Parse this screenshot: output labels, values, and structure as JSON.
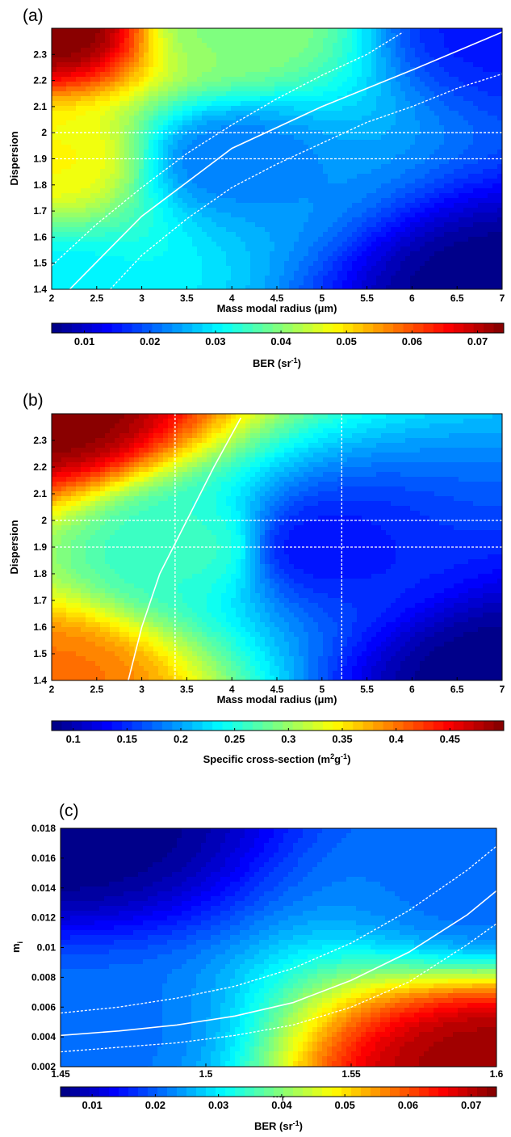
{
  "colors": {
    "colormap": [
      "#00007f",
      "#0000ff",
      "#007fff",
      "#00ffff",
      "#7fff7f",
      "#ffff00",
      "#ff7f00",
      "#ff0000",
      "#7f0000"
    ],
    "contour_line": "#ffffff",
    "axis": "#000000"
  },
  "chart_data": [
    {
      "panel_label": "(a)",
      "type": "heatmap",
      "xlabel": "Mass modal radius (μm)",
      "ylabel": "Dispersion",
      "xlim": [
        2,
        7
      ],
      "ylim": [
        1.4,
        2.4
      ],
      "x_ticks": [
        {
          "v": 2,
          "label": "2"
        },
        {
          "v": 2.5,
          "label": "2.5"
        },
        {
          "v": 3,
          "label": "3"
        },
        {
          "v": 3.5,
          "label": "3.5"
        },
        {
          "v": 4,
          "label": "4"
        },
        {
          "v": 4.5,
          "label": "4.5"
        },
        {
          "v": 5,
          "label": "5"
        },
        {
          "v": 5.5,
          "label": "5.5"
        },
        {
          "v": 6,
          "label": "6"
        },
        {
          "v": 6.5,
          "label": "6.5"
        },
        {
          "v": 7,
          "label": "7"
        }
      ],
      "y_ticks": [
        {
          "v": 1.4,
          "label": "1.4"
        },
        {
          "v": 1.5,
          "label": "1.5"
        },
        {
          "v": 1.6,
          "label": "1.6"
        },
        {
          "v": 1.7,
          "label": "1.7"
        },
        {
          "v": 1.8,
          "label": "1.8"
        },
        {
          "v": 1.9,
          "label": "1.9"
        },
        {
          "v": 2,
          "label": "2"
        },
        {
          "v": 2.1,
          "label": "2.1"
        },
        {
          "v": 2.2,
          "label": "2.2"
        },
        {
          "v": 2.3,
          "label": "2.3"
        }
      ],
      "colorbar": {
        "label_main": "BER (sr",
        "label_sup": "-1",
        "label_end": ")",
        "range": [
          0.005,
          0.074
        ],
        "levels": 45,
        "ticks": [
          {
            "v": 0.01,
            "label": "0.01"
          },
          {
            "v": 0.02,
            "label": "0.02"
          },
          {
            "v": 0.03,
            "label": "0.03"
          },
          {
            "v": 0.04,
            "label": "0.04"
          },
          {
            "v": 0.05,
            "label": "0.05"
          },
          {
            "v": 0.06,
            "label": "0.06"
          },
          {
            "v": 0.07,
            "label": "0.07"
          }
        ]
      },
      "field_value_samples": [
        {
          "x": 2,
          "y": 2.4,
          "value": 0.074
        },
        {
          "x": 2,
          "y": 1.9,
          "value": 0.048
        },
        {
          "x": 2,
          "y": 1.4,
          "value": 0.03
        },
        {
          "x": 4,
          "y": 2.4,
          "value": 0.04
        },
        {
          "x": 4,
          "y": 1.9,
          "value": 0.022
        },
        {
          "x": 7,
          "y": 2.4,
          "value": 0.015
        },
        {
          "x": 7,
          "y": 1.4,
          "value": 0.005
        }
      ],
      "contour_lines": [
        {
          "style": "solid",
          "points": [
            [
              2.2,
              1.4
            ],
            [
              3.0,
              1.68
            ],
            [
              4.0,
              1.94
            ],
            [
              5.0,
              2.1
            ],
            [
              6.0,
              2.24
            ],
            [
              7.0,
              2.385
            ]
          ]
        },
        {
          "style": "dashed",
          "points": [
            [
              2.0,
              1.49
            ],
            [
              2.5,
              1.65
            ],
            [
              3.0,
              1.79
            ],
            [
              3.5,
              1.92
            ],
            [
              4.0,
              2.03
            ],
            [
              4.5,
              2.13
            ],
            [
              5.0,
              2.22
            ],
            [
              5.5,
              2.3
            ],
            [
              5.9,
              2.385
            ]
          ]
        },
        {
          "style": "dashed",
          "points": [
            [
              2.65,
              1.4
            ],
            [
              3.0,
              1.53
            ],
            [
              3.5,
              1.67
            ],
            [
              4.0,
              1.79
            ],
            [
              4.5,
              1.88
            ],
            [
              5.0,
              1.96
            ],
            [
              5.5,
              2.04
            ],
            [
              6.0,
              2.1
            ],
            [
              6.5,
              2.17
            ],
            [
              7.0,
              2.225
            ]
          ]
        }
      ],
      "reference_lines": [
        {
          "orientation": "horizontal",
          "value": 2.0
        },
        {
          "orientation": "horizontal",
          "value": 1.9
        }
      ]
    },
    {
      "panel_label": "(b)",
      "type": "heatmap",
      "xlabel": "Mass modal radius (μm)",
      "ylabel": "Dispersion",
      "xlim": [
        2,
        7
      ],
      "ylim": [
        1.4,
        2.4
      ],
      "x_ticks": [
        {
          "v": 2,
          "label": "2"
        },
        {
          "v": 2.5,
          "label": "2.5"
        },
        {
          "v": 3,
          "label": "3"
        },
        {
          "v": 3.5,
          "label": "3.5"
        },
        {
          "v": 4,
          "label": "4"
        },
        {
          "v": 4.5,
          "label": "4.5"
        },
        {
          "v": 5,
          "label": "5"
        },
        {
          "v": 5.5,
          "label": "5.5"
        },
        {
          "v": 6,
          "label": "6"
        },
        {
          "v": 6.5,
          "label": "6.5"
        },
        {
          "v": 7,
          "label": "7"
        }
      ],
      "y_ticks": [
        {
          "v": 1.4,
          "label": "1.4"
        },
        {
          "v": 1.5,
          "label": "1.5"
        },
        {
          "v": 1.6,
          "label": "1.6"
        },
        {
          "v": 1.7,
          "label": "1.7"
        },
        {
          "v": 1.8,
          "label": "1.8"
        },
        {
          "v": 1.9,
          "label": "1.9"
        },
        {
          "v": 2,
          "label": "2"
        },
        {
          "v": 2.1,
          "label": "2.1"
        },
        {
          "v": 2.2,
          "label": "2.2"
        },
        {
          "v": 2.3,
          "label": "2.3"
        }
      ],
      "colorbar": {
        "label_main": "Specific cross-section (m",
        "label_sup": "2",
        "label_mid": "g",
        "label_sup2": "-1",
        "label_end": ")",
        "range": [
          0.08,
          0.5
        ],
        "levels": 45,
        "ticks": [
          {
            "v": 0.1,
            "label": "0.1"
          },
          {
            "v": 0.15,
            "label": "0.15"
          },
          {
            "v": 0.2,
            "label": "0.2"
          },
          {
            "v": 0.25,
            "label": "0.25"
          },
          {
            "v": 0.3,
            "label": "0.3"
          },
          {
            "v": 0.35,
            "label": "0.35"
          },
          {
            "v": 0.4,
            "label": "0.4"
          },
          {
            "v": 0.45,
            "label": "0.45"
          }
        ]
      },
      "field_value_samples": [
        {
          "x": 2,
          "y": 2.4,
          "value": 0.5
        },
        {
          "x": 2,
          "y": 1.4,
          "value": 0.4
        },
        {
          "x": 3.5,
          "y": 1.9,
          "value": 0.26
        },
        {
          "x": 5,
          "y": 1.9,
          "value": 0.14
        },
        {
          "x": 7,
          "y": 1.4,
          "value": 0.08
        }
      ],
      "contour_lines": [
        {
          "style": "solid",
          "points": [
            [
              2.85,
              1.4
            ],
            [
              3.0,
              1.6
            ],
            [
              3.2,
              1.8
            ],
            [
              3.5,
              2.0
            ],
            [
              3.8,
              2.2
            ],
            [
              4.1,
              2.385
            ]
          ]
        }
      ],
      "reference_lines": [
        {
          "orientation": "horizontal",
          "value": 2.0
        },
        {
          "orientation": "horizontal",
          "value": 1.9
        },
        {
          "orientation": "vertical",
          "value": 3.37
        },
        {
          "orientation": "vertical",
          "value": 5.22
        }
      ]
    },
    {
      "panel_label": "(c)",
      "type": "heatmap",
      "xlabel": "m",
      "xlabel_sub": "r",
      "ylabel": "m",
      "ylabel_sub": "i",
      "xlim": [
        1.45,
        1.6
      ],
      "ylim": [
        0.002,
        0.018
      ],
      "x_ticks": [
        {
          "v": 1.45,
          "label": "1.45"
        },
        {
          "v": 1.5,
          "label": "1.5"
        },
        {
          "v": 1.55,
          "label": "1.55"
        },
        {
          "v": 1.6,
          "label": "1.6"
        }
      ],
      "y_ticks": [
        {
          "v": 0.002,
          "label": "0.002"
        },
        {
          "v": 0.004,
          "label": "0.004"
        },
        {
          "v": 0.006,
          "label": "0.006"
        },
        {
          "v": 0.008,
          "label": "0.008"
        },
        {
          "v": 0.01,
          "label": "0.01"
        },
        {
          "v": 0.012,
          "label": "0.012"
        },
        {
          "v": 0.014,
          "label": "0.014"
        },
        {
          "v": 0.016,
          "label": "0.016"
        },
        {
          "v": 0.018,
          "label": "0.018"
        }
      ],
      "colorbar": {
        "label_main": "BER (sr",
        "label_sup": "-1",
        "label_end": ")",
        "range": [
          0.005,
          0.074
        ],
        "levels": 45,
        "ticks": [
          {
            "v": 0.01,
            "label": "0.01"
          },
          {
            "v": 0.02,
            "label": "0.02"
          },
          {
            "v": 0.03,
            "label": "0.03"
          },
          {
            "v": 0.04,
            "label": "0.04"
          },
          {
            "v": 0.05,
            "label": "0.05"
          },
          {
            "v": 0.06,
            "label": "0.06"
          },
          {
            "v": 0.07,
            "label": "0.07"
          }
        ]
      },
      "field_value_samples": [
        {
          "x": 1.45,
          "y": 0.018,
          "value": 0.005
        },
        {
          "x": 1.45,
          "y": 0.004,
          "value": 0.021
        },
        {
          "x": 1.6,
          "y": 0.014,
          "value": 0.021
        },
        {
          "x": 1.6,
          "y": 0.002,
          "value": 0.072
        }
      ],
      "contour_lines": [
        {
          "style": "solid",
          "points": [
            [
              1.45,
              0.0041
            ],
            [
              1.47,
              0.0044
            ],
            [
              1.49,
              0.0048
            ],
            [
              1.51,
              0.0054
            ],
            [
              1.53,
              0.0063
            ],
            [
              1.55,
              0.0078
            ],
            [
              1.57,
              0.0097
            ],
            [
              1.59,
              0.0122
            ],
            [
              1.6,
              0.0138
            ]
          ]
        },
        {
          "style": "dashed",
          "points": [
            [
              1.45,
              0.0056
            ],
            [
              1.47,
              0.006
            ],
            [
              1.49,
              0.0066
            ],
            [
              1.51,
              0.0074
            ],
            [
              1.53,
              0.0086
            ],
            [
              1.55,
              0.0103
            ],
            [
              1.57,
              0.0125
            ],
            [
              1.59,
              0.0152
            ],
            [
              1.6,
              0.0168
            ]
          ]
        },
        {
          "style": "dashed",
          "points": [
            [
              1.45,
              0.003
            ],
            [
              1.47,
              0.0033
            ],
            [
              1.49,
              0.0036
            ],
            [
              1.51,
              0.0041
            ],
            [
              1.53,
              0.0048
            ],
            [
              1.55,
              0.006
            ],
            [
              1.57,
              0.0077
            ],
            [
              1.59,
              0.0102
            ],
            [
              1.6,
              0.0116
            ]
          ]
        }
      ],
      "reference_lines": []
    }
  ]
}
